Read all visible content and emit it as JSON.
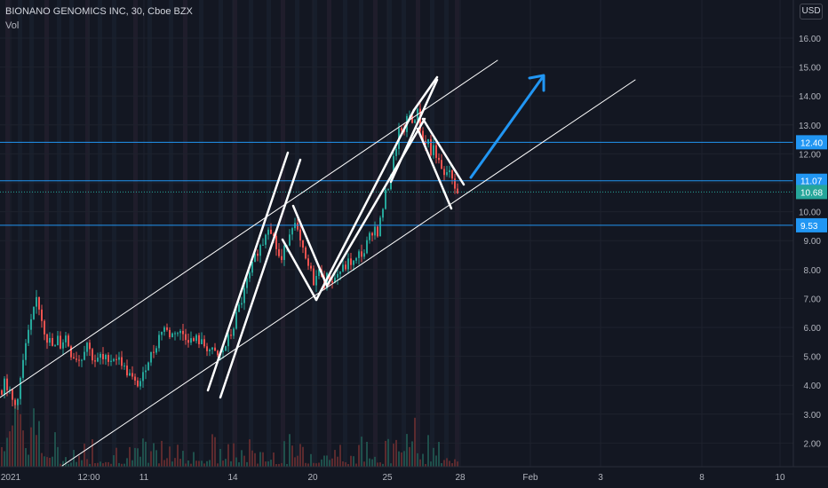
{
  "header": {
    "title": "BIONANO GENOMICS INC, 30, Cboe BZX",
    "subtitle": "Vol"
  },
  "currency_label": "USD",
  "colors": {
    "background": "#131722",
    "up": "#26a69a",
    "down": "#ef5350",
    "level_line": "#2196f3",
    "last_price": "#26a69a",
    "drawing": "#ffffff",
    "arrow": "#2196f3"
  },
  "chart_data": {
    "type": "candlestick",
    "symbol": "BIONANO GENOMICS INC",
    "interval": "30",
    "exchange": "Cboe BZX",
    "y_ticks": [
      "16.00",
      "15.00",
      "14.00",
      "13.00",
      "12.00",
      "11.00",
      "10.00",
      "9.00",
      "8.00",
      "7.00",
      "6.00",
      "5.00",
      "4.00",
      "3.00",
      "2.00"
    ],
    "ylim": [
      1.35,
      16.5
    ],
    "x_ticks": [
      "2021",
      "12:00",
      "11",
      "14",
      "20",
      "25",
      "28",
      "Feb",
      "3",
      "8",
      "10"
    ],
    "price_levels": [
      {
        "value": "12.40",
        "type": "horizontal"
      },
      {
        "value": "11.07",
        "type": "horizontal"
      },
      {
        "value": "9.53",
        "type": "horizontal"
      }
    ],
    "last_price": "10.68",
    "price_path": [
      [
        0,
        3.7
      ],
      [
        4,
        4.2
      ],
      [
        8,
        3.9
      ],
      [
        12,
        3.5
      ],
      [
        16,
        3.3
      ],
      [
        20,
        3.8
      ],
      [
        24,
        4.6
      ],
      [
        28,
        5.4
      ],
      [
        32,
        5.9
      ],
      [
        36,
        6.4
      ],
      [
        40,
        7.0
      ],
      [
        44,
        6.6
      ],
      [
        48,
        6.0
      ],
      [
        52,
        5.6
      ],
      [
        56,
        5.5
      ],
      [
        60,
        5.2
      ],
      [
        64,
        5.6
      ],
      [
        68,
        5.3
      ],
      [
        72,
        5.8
      ],
      [
        76,
        5.4
      ],
      [
        80,
        5.0
      ],
      [
        84,
        5.0
      ],
      [
        88,
        4.9
      ],
      [
        92,
        5.0
      ],
      [
        96,
        5.6
      ],
      [
        100,
        5.2
      ],
      [
        104,
        4.9
      ],
      [
        108,
        4.8
      ],
      [
        112,
        5.0
      ],
      [
        116,
        4.8
      ],
      [
        120,
        5.0
      ],
      [
        124,
        4.9
      ],
      [
        128,
        5.0
      ],
      [
        132,
        4.9
      ],
      [
        136,
        4.8
      ],
      [
        140,
        4.5
      ],
      [
        144,
        4.4
      ],
      [
        148,
        4.2
      ],
      [
        152,
        4.0
      ],
      [
        156,
        4.1
      ],
      [
        160,
        4.3
      ],
      [
        164,
        4.8
      ],
      [
        168,
        5.0
      ],
      [
        172,
        5.2
      ],
      [
        176,
        5.5
      ],
      [
        180,
        5.9
      ],
      [
        184,
        6.0
      ],
      [
        188,
        5.8
      ],
      [
        192,
        5.7
      ],
      [
        196,
        5.9
      ],
      [
        200,
        5.8
      ],
      [
        204,
        5.8
      ],
      [
        208,
        5.7
      ],
      [
        212,
        5.6
      ],
      [
        216,
        5.5
      ],
      [
        220,
        5.6
      ],
      [
        224,
        5.5
      ],
      [
        228,
        5.4
      ],
      [
        232,
        5.3
      ],
      [
        236,
        5.2
      ],
      [
        240,
        5.1
      ],
      [
        244,
        5.0
      ],
      [
        248,
        5.1
      ],
      [
        252,
        5.3
      ],
      [
        256,
        5.6
      ],
      [
        260,
        5.8
      ],
      [
        264,
        6.3
      ],
      [
        268,
        6.7
      ],
      [
        272,
        7.0
      ],
      [
        276,
        7.5
      ],
      [
        280,
        7.8
      ],
      [
        284,
        8.2
      ],
      [
        288,
        8.6
      ],
      [
        292,
        8.8
      ],
      [
        296,
        9.0
      ],
      [
        300,
        9.6
      ],
      [
        304,
        9.4
      ],
      [
        308,
        9.0
      ],
      [
        312,
        8.5
      ],
      [
        316,
        8.3
      ],
      [
        320,
        8.8
      ],
      [
        324,
        9.2
      ],
      [
        328,
        9.6
      ],
      [
        332,
        9.5
      ],
      [
        336,
        9.0
      ],
      [
        340,
        8.6
      ],
      [
        344,
        8.2
      ],
      [
        348,
        8.0
      ],
      [
        352,
        7.6
      ],
      [
        356,
        7.8
      ],
      [
        360,
        8.0
      ],
      [
        364,
        7.5
      ],
      [
        368,
        7.8
      ],
      [
        372,
        7.6
      ],
      [
        376,
        7.7
      ],
      [
        380,
        7.9
      ],
      [
        384,
        8.0
      ],
      [
        388,
        8.1
      ],
      [
        392,
        8.3
      ],
      [
        396,
        8.2
      ],
      [
        400,
        8.3
      ],
      [
        404,
        8.6
      ],
      [
        408,
        8.5
      ],
      [
        412,
        8.9
      ],
      [
        416,
        9.2
      ],
      [
        420,
        9.5
      ],
      [
        424,
        9.3
      ],
      [
        428,
        9.8
      ],
      [
        432,
        10.5
      ],
      [
        436,
        10.9
      ],
      [
        440,
        11.5
      ],
      [
        444,
        12.1
      ],
      [
        448,
        12.8
      ],
      [
        452,
        12.6
      ],
      [
        456,
        13.1
      ],
      [
        460,
        13.3
      ],
      [
        464,
        13.0
      ],
      [
        468,
        13.6
      ],
      [
        472,
        12.9
      ],
      [
        476,
        12.3
      ],
      [
        480,
        12.6
      ],
      [
        484,
        12.0
      ],
      [
        488,
        12.3
      ],
      [
        492,
        11.7
      ],
      [
        496,
        11.4
      ],
      [
        500,
        11.1
      ],
      [
        504,
        11.6
      ],
      [
        508,
        11.0
      ],
      [
        512,
        10.8
      ],
      [
        516,
        10.68
      ]
    ],
    "volume_ref": "Vol"
  }
}
